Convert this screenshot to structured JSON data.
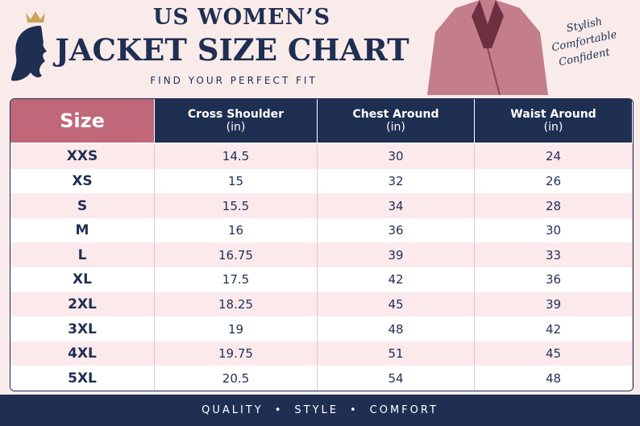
{
  "header": {
    "title_top": "US WOMEN’S",
    "title_main": "JACKET SIZE CHART",
    "subtitle": "FIND YOUR PERFECT FIT",
    "tagline": [
      "Stylish",
      "Comfortable",
      "Confident"
    ]
  },
  "table": {
    "columns": [
      {
        "label": "Size"
      },
      {
        "label": "Cross Shoulder",
        "unit": "(in)"
      },
      {
        "label": "Chest Around",
        "unit": "(in)"
      },
      {
        "label": "Waist Around",
        "unit": "(in)"
      }
    ],
    "rows": [
      [
        "XXS",
        14.5,
        30,
        24
      ],
      [
        "XS",
        15,
        32,
        26
      ],
      [
        "S",
        15.5,
        34,
        28
      ],
      [
        "M",
        16,
        36,
        30
      ],
      [
        "L",
        16.75,
        39,
        33
      ],
      [
        "XL",
        17.5,
        42,
        36
      ],
      [
        "2XL",
        18.25,
        45,
        39
      ],
      [
        "3XL",
        19,
        48,
        42
      ],
      [
        "4XL",
        19.75,
        51,
        45
      ],
      [
        "5XL",
        20.5,
        54,
        48
      ]
    ]
  },
  "footer": {
    "items": [
      "QUALITY",
      "STYLE",
      "COMFORT"
    ]
  }
}
